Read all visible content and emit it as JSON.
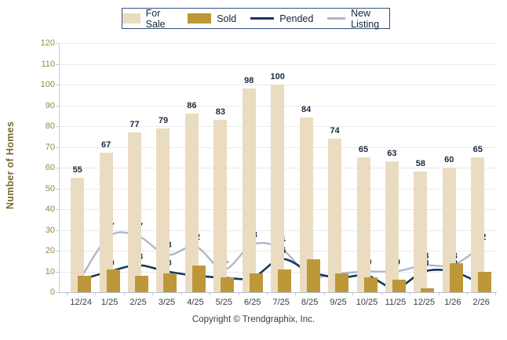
{
  "legend": {
    "items": [
      {
        "label": "For Sale",
        "type": "bar",
        "color": "#EADCC0"
      },
      {
        "label": "Sold",
        "type": "bar",
        "color": "#BE9738"
      },
      {
        "label": "Pended",
        "type": "line",
        "color": "#17365D"
      },
      {
        "label": "New Listing",
        "type": "line",
        "color": "#AEB7CC"
      }
    ]
  },
  "chart_data": {
    "type": "bar",
    "subtype": "grouped bars with smoothed line overlays",
    "categories": [
      "12/24",
      "1/25",
      "2/25",
      "3/25",
      "4/25",
      "5/25",
      "6/25",
      "7/25",
      "8/25",
      "9/25",
      "10/25",
      "11/25",
      "12/25",
      "1/26",
      "2/26"
    ],
    "series": [
      {
        "name": "For Sale",
        "type": "bar",
        "color": "#EADCC0",
        "values": [
          55,
          67,
          77,
          79,
          86,
          83,
          98,
          100,
          84,
          74,
          65,
          63,
          58,
          60,
          65
        ]
      },
      {
        "name": "Sold",
        "type": "bar",
        "color": "#BE9738",
        "values": [
          8,
          11,
          8,
          9,
          13,
          7,
          9,
          11,
          16,
          9,
          7,
          6,
          2,
          14,
          10
        ]
      },
      {
        "name": "Pended",
        "type": "line",
        "color": "#17365D",
        "values": [
          6,
          10,
          13,
          10,
          8,
          7,
          7,
          16,
          10,
          7,
          8,
          2,
          10,
          10,
          4
        ]
      },
      {
        "name": "New Listing",
        "type": "line",
        "color": "#AEB7CC",
        "values": [
          7,
          27,
          27,
          18,
          22,
          11,
          23,
          21,
          8,
          9,
          10,
          10,
          13,
          13,
          22
        ]
      }
    ],
    "title": "",
    "xlabel": "",
    "ylabel": "Number of Homes",
    "ylim": [
      0,
      120
    ],
    "ytick_step": 10,
    "grid": true,
    "legend_position": "top-center",
    "colors": {
      "grid": "#e9e9f1",
      "ytick_text": "#9c8440",
      "value_label_text": "#1f2a3d",
      "ylabel_text": "#7d672b"
    }
  },
  "footer": {
    "copyright": "Copyright © Trendgraphix, Inc."
  }
}
